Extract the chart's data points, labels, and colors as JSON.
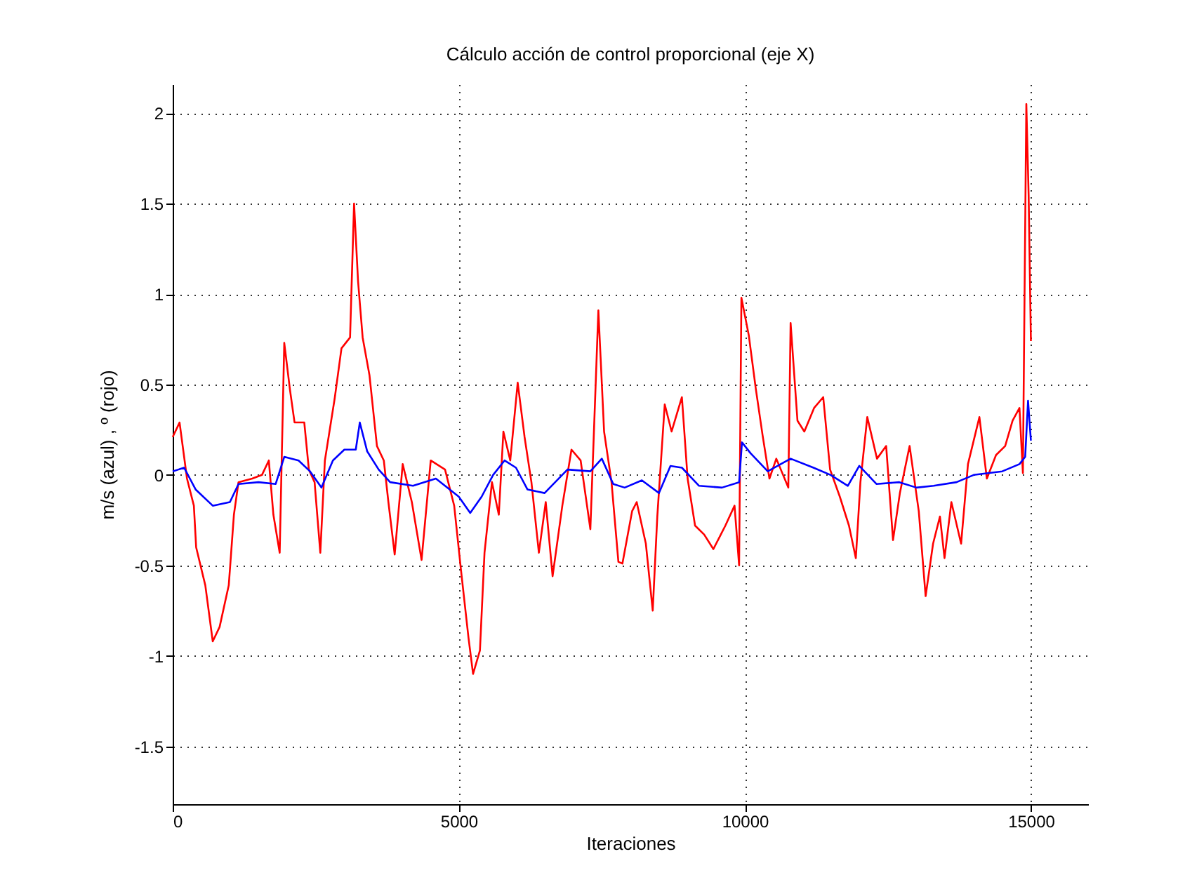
{
  "chart_data": {
    "type": "line",
    "title": "Cálculo acción de control proporcional (eje X)",
    "xlabel": "Iteraciones",
    "ylabel": "m/s (azul) , º (rojo)",
    "xlim": [
      0,
      16000
    ],
    "xticks": [
      0,
      5000,
      10000,
      15000
    ],
    "ylim": [
      -1.82,
      2.16
    ],
    "yticks": [
      -1.5,
      -1,
      -0.5,
      0,
      0.5,
      1,
      1.5,
      2
    ],
    "grid": true,
    "line_style": "solid",
    "marker": "none",
    "series": [
      {
        "color": "#ff0000",
        "x": [
          0,
          120,
          250,
          370,
          410,
          570,
          700,
          820,
          980,
          1070,
          1150,
          1390,
          1560,
          1680,
          1760,
          1870,
          1950,
          2050,
          2130,
          2300,
          2380,
          2480,
          2580,
          2660,
          2830,
          2950,
          3100,
          3170,
          3240,
          3320,
          3440,
          3570,
          3690,
          3770,
          3880,
          4020,
          4180,
          4350,
          4510,
          4760,
          4920,
          5040,
          5170,
          5250,
          5370,
          5450,
          5580,
          5700,
          5780,
          5900,
          6030,
          6150,
          6270,
          6400,
          6520,
          6640,
          6810,
          6970,
          7130,
          7300,
          7440,
          7540,
          7670,
          7790,
          7860,
          8030,
          8110,
          8270,
          8390,
          8470,
          8600,
          8720,
          8900,
          9000,
          9130,
          9290,
          9450,
          9660,
          9820,
          9900,
          9940,
          10070,
          10190,
          10310,
          10430,
          10550,
          10760,
          10800,
          10920,
          11040,
          11210,
          11370,
          11490,
          11660,
          11820,
          11940,
          12020,
          12140,
          12310,
          12470,
          12590,
          12710,
          12880,
          13040,
          13160,
          13290,
          13410,
          13490,
          13610,
          13780,
          13900,
          14100,
          14230,
          14390,
          14550,
          14680,
          14800,
          14860,
          14920,
          14960,
          15000
        ],
        "values": [
          0.21,
          0.29,
          -0.02,
          -0.17,
          -0.4,
          -0.61,
          -0.92,
          -0.84,
          -0.61,
          -0.22,
          -0.04,
          -0.02,
          0.0,
          0.08,
          -0.22,
          -0.43,
          0.73,
          0.47,
          0.29,
          0.29,
          0.03,
          -0.04,
          -0.43,
          0.08,
          0.42,
          0.7,
          0.76,
          1.5,
          1.07,
          0.76,
          0.55,
          0.16,
          0.08,
          -0.15,
          -0.44,
          0.06,
          -0.15,
          -0.47,
          0.08,
          0.03,
          -0.17,
          -0.53,
          -0.9,
          -1.1,
          -0.97,
          -0.43,
          -0.04,
          -0.22,
          0.24,
          0.08,
          0.51,
          0.21,
          -0.04,
          -0.43,
          -0.15,
          -0.56,
          -0.17,
          0.14,
          0.08,
          -0.3,
          0.91,
          0.24,
          -0.04,
          -0.48,
          -0.49,
          -0.2,
          -0.15,
          -0.38,
          -0.75,
          -0.23,
          0.39,
          0.24,
          0.43,
          -0.02,
          -0.28,
          -0.33,
          -0.41,
          -0.28,
          -0.17,
          -0.5,
          0.98,
          0.77,
          0.48,
          0.22,
          -0.02,
          0.09,
          -0.07,
          0.84,
          0.3,
          0.24,
          0.37,
          0.43,
          0.03,
          -0.12,
          -0.28,
          -0.46,
          -0.04,
          0.32,
          0.09,
          0.16,
          -0.36,
          -0.1,
          0.16,
          -0.2,
          -0.67,
          -0.38,
          -0.23,
          -0.46,
          -0.15,
          -0.38,
          0.06,
          0.32,
          -0.02,
          0.11,
          0.16,
          0.3,
          0.37,
          0.01,
          2.05,
          1.55,
          0.74
        ]
      },
      {
        "color": "#0000ff",
        "x": [
          0,
          200,
          400,
          700,
          1000,
          1150,
          1500,
          1800,
          1950,
          2200,
          2400,
          2600,
          2800,
          3000,
          3200,
          3270,
          3400,
          3600,
          3800,
          4200,
          4600,
          5000,
          5200,
          5400,
          5600,
          5800,
          6000,
          6200,
          6500,
          6900,
          7300,
          7500,
          7700,
          7900,
          8200,
          8500,
          8700,
          8900,
          9200,
          9600,
          9900,
          9950,
          10100,
          10400,
          10800,
          11200,
          11500,
          11800,
          12000,
          12300,
          12700,
          13000,
          13300,
          13700,
          14000,
          14500,
          14800,
          14900,
          14950,
          15000
        ],
        "values": [
          0.02,
          0.04,
          -0.08,
          -0.17,
          -0.15,
          -0.05,
          -0.04,
          -0.05,
          0.1,
          0.08,
          0.02,
          -0.07,
          0.08,
          0.14,
          0.14,
          0.29,
          0.13,
          0.03,
          -0.04,
          -0.06,
          -0.02,
          -0.12,
          -0.21,
          -0.12,
          0.0,
          0.08,
          0.04,
          -0.08,
          -0.1,
          0.03,
          0.02,
          0.09,
          -0.05,
          -0.07,
          -0.03,
          -0.1,
          0.05,
          0.04,
          -0.06,
          -0.07,
          -0.04,
          0.18,
          0.12,
          0.02,
          0.09,
          0.04,
          0.0,
          -0.06,
          0.05,
          -0.05,
          -0.04,
          -0.07,
          -0.06,
          -0.04,
          0.0,
          0.02,
          0.06,
          0.1,
          0.41,
          0.19
        ]
      }
    ]
  }
}
